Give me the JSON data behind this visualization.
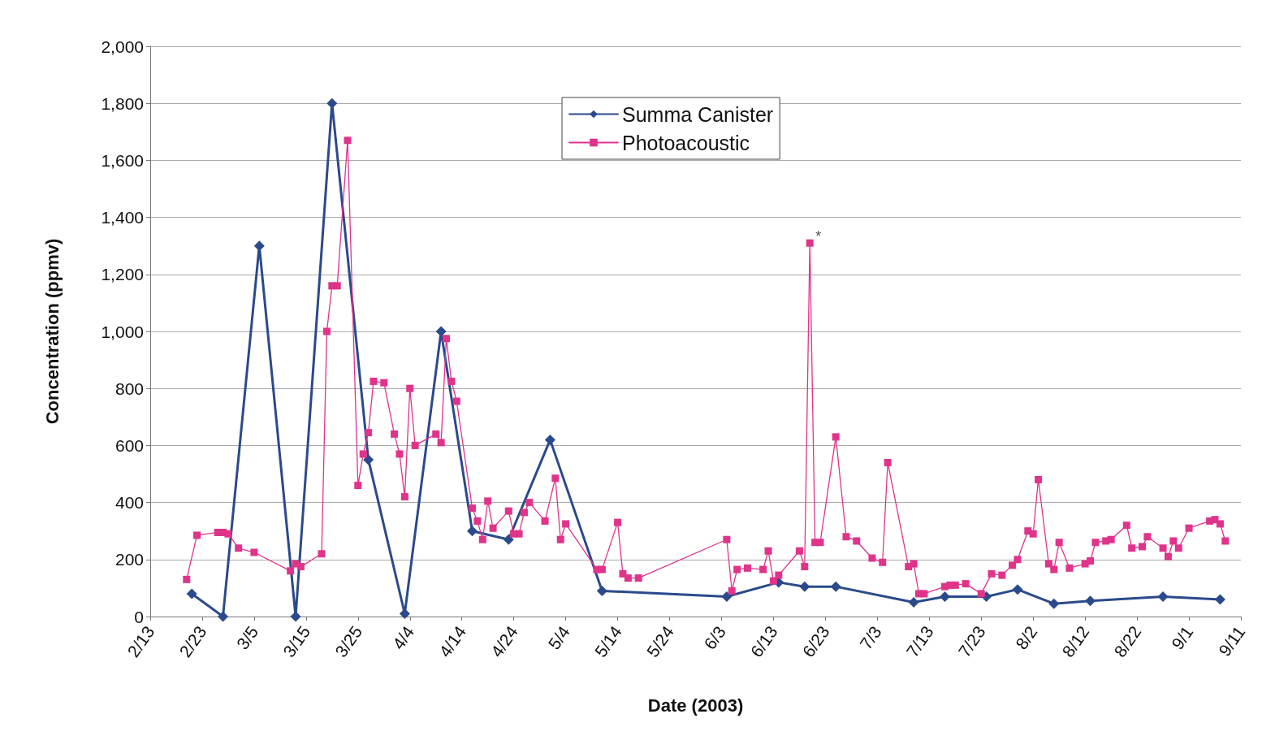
{
  "chart_data": {
    "type": "line",
    "xlabel": "Date (2003)",
    "ylabel": "Concentration (ppmv)",
    "legend": "top",
    "grid": "y",
    "line_style": "solid",
    "xlim": [
      "2003-02-13",
      "2003-09-11"
    ],
    "xticks": [
      {
        "value": "2003-02-13",
        "label": "2/13"
      },
      {
        "value": "2003-02-23",
        "label": "2/23"
      },
      {
        "value": "2003-03-05",
        "label": "3/5"
      },
      {
        "value": "2003-03-15",
        "label": "3/15"
      },
      {
        "value": "2003-03-25",
        "label": "3/25"
      },
      {
        "value": "2003-04-04",
        "label": "4/4"
      },
      {
        "value": "2003-04-14",
        "label": "4/14"
      },
      {
        "value": "2003-04-24",
        "label": "4/24"
      },
      {
        "value": "2003-05-04",
        "label": "5/4"
      },
      {
        "value": "2003-05-14",
        "label": "5/14"
      },
      {
        "value": "2003-05-24",
        "label": "5/24"
      },
      {
        "value": "2003-06-03",
        "label": "6/3"
      },
      {
        "value": "2003-06-13",
        "label": "6/13"
      },
      {
        "value": "2003-06-23",
        "label": "6/23"
      },
      {
        "value": "2003-07-03",
        "label": "7/3"
      },
      {
        "value": "2003-07-13",
        "label": "7/13"
      },
      {
        "value": "2003-07-23",
        "label": "7/23"
      },
      {
        "value": "2003-08-02",
        "label": "8/2"
      },
      {
        "value": "2003-08-12",
        "label": "8/12"
      },
      {
        "value": "2003-08-22",
        "label": "8/22"
      },
      {
        "value": "2003-09-01",
        "label": "9/1"
      },
      {
        "value": "2003-09-11",
        "label": "9/11"
      }
    ],
    "ylim": [
      0,
      2000
    ],
    "yticks": [
      0,
      200,
      400,
      600,
      800,
      {
        "value": 1000,
        "label": "1,000"
      },
      {
        "value": 1200,
        "label": "1,200"
      },
      {
        "value": 1400,
        "label": "1,400"
      },
      {
        "value": 1600,
        "label": "1,600"
      },
      {
        "value": 1800,
        "label": "1,800"
      },
      {
        "value": 2000,
        "label": "2,000"
      }
    ],
    "annotations": [
      {
        "text": "*",
        "x": "2003-06-20",
        "y": 1310
      }
    ],
    "series": [
      {
        "name": "Summa Canister",
        "color": "#2b4a8c",
        "marker": "diamond",
        "x": [
          "2003-02-21",
          "2003-02-27",
          "2003-03-06",
          "2003-03-13",
          "2003-03-20",
          "2003-03-27",
          "2003-04-03",
          "2003-04-10",
          "2003-04-16",
          "2003-04-23",
          "2003-05-01",
          "2003-05-11",
          "2003-06-04",
          "2003-06-14",
          "2003-06-19",
          "2003-06-25",
          "2003-07-10",
          "2003-07-16",
          "2003-07-24",
          "2003-07-30",
          "2003-08-06",
          "2003-08-13",
          "2003-08-27",
          "2003-09-07"
        ],
        "values": [
          80,
          0,
          1300,
          0,
          1800,
          550,
          10,
          1000,
          300,
          270,
          620,
          90,
          70,
          120,
          105,
          105,
          50,
          70,
          70,
          95,
          45,
          55,
          70,
          60
        ]
      },
      {
        "name": "Photoacoustic",
        "color": "#e0338a",
        "marker": "square",
        "x": [
          "2003-02-20",
          "2003-02-22",
          "2003-02-26",
          "2003-02-27",
          "2003-02-28",
          "2003-03-02",
          "2003-03-05",
          "2003-03-12",
          "2003-03-13",
          "2003-03-14",
          "2003-03-18",
          "2003-03-19",
          "2003-03-20",
          "2003-03-21",
          "2003-03-23",
          "2003-03-25",
          "2003-03-26",
          "2003-03-27",
          "2003-03-28",
          "2003-03-30",
          "2003-04-01",
          "2003-04-02",
          "2003-04-03",
          "2003-04-04",
          "2003-04-05",
          "2003-04-09",
          "2003-04-10",
          "2003-04-11",
          "2003-04-12",
          "2003-04-13",
          "2003-04-16",
          "2003-04-17",
          "2003-04-18",
          "2003-04-19",
          "2003-04-20",
          "2003-04-23",
          "2003-04-24",
          "2003-04-25",
          "2003-04-26",
          "2003-04-27",
          "2003-04-30",
          "2003-05-02",
          "2003-05-03",
          "2003-05-04",
          "2003-05-10",
          "2003-05-11",
          "2003-05-14",
          "2003-05-15",
          "2003-05-16",
          "2003-05-18",
          "2003-06-04",
          "2003-06-05",
          "2003-06-06",
          "2003-06-08",
          "2003-06-11",
          "2003-06-12",
          "2003-06-13",
          "2003-06-14",
          "2003-06-18",
          "2003-06-19",
          "2003-06-20",
          "2003-06-21",
          "2003-06-22",
          "2003-06-25",
          "2003-06-27",
          "2003-06-29",
          "2003-07-02",
          "2003-07-04",
          "2003-07-05",
          "2003-07-09",
          "2003-07-10",
          "2003-07-11",
          "2003-07-12",
          "2003-07-16",
          "2003-07-17",
          "2003-07-18",
          "2003-07-20",
          "2003-07-23",
          "2003-07-25",
          "2003-07-27",
          "2003-07-29",
          "2003-07-30",
          "2003-08-01",
          "2003-08-02",
          "2003-08-03",
          "2003-08-05",
          "2003-08-06",
          "2003-08-07",
          "2003-08-09",
          "2003-08-12",
          "2003-08-13",
          "2003-08-14",
          "2003-08-16",
          "2003-08-17",
          "2003-08-20",
          "2003-08-21",
          "2003-08-23",
          "2003-08-24",
          "2003-08-27",
          "2003-08-28",
          "2003-08-29",
          "2003-08-30",
          "2003-09-01",
          "2003-09-05",
          "2003-09-06",
          "2003-09-07",
          "2003-09-08"
        ],
        "values": [
          130,
          285,
          295,
          295,
          290,
          240,
          225,
          160,
          185,
          175,
          220,
          1000,
          1160,
          1160,
          1670,
          460,
          570,
          645,
          825,
          820,
          640,
          570,
          420,
          800,
          600,
          640,
          610,
          975,
          825,
          755,
          380,
          335,
          270,
          405,
          310,
          370,
          290,
          290,
          365,
          400,
          335,
          485,
          270,
          325,
          165,
          165,
          330,
          150,
          135,
          135,
          270,
          90,
          165,
          170,
          165,
          230,
          125,
          145,
          230,
          175,
          1310,
          260,
          260,
          630,
          280,
          265,
          205,
          190,
          540,
          175,
          185,
          80,
          80,
          105,
          110,
          110,
          115,
          80,
          150,
          145,
          180,
          200,
          300,
          290,
          480,
          185,
          165,
          260,
          170,
          185,
          195,
          260,
          265,
          270,
          320,
          240,
          245,
          280,
          240,
          210,
          265,
          240,
          310,
          335,
          340,
          325,
          265
        ]
      }
    ]
  }
}
